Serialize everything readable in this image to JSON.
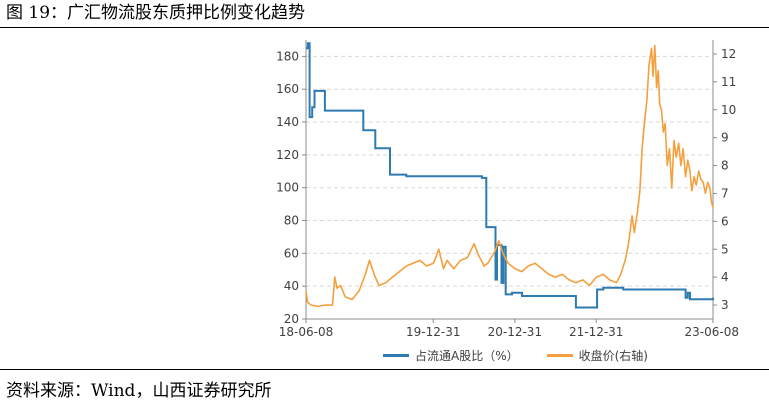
{
  "figure_title": "图 19：广汇物流股东质押比例变化趋势",
  "source_text": "资料来源：Wind，山西证券研究所",
  "chart_data": {
    "type": "line",
    "title": "广汇物流股东质押比例变化趋势",
    "x": [
      "18-06-08",
      "19-12-31",
      "20-12-31",
      "21-12-31",
      "23-06-08"
    ],
    "x_tick_labels": [
      "18-06-08",
      "19-12-31",
      "20-12-31",
      "21-12-31",
      "23-06-08"
    ],
    "x_range": [
      "18-06-08",
      "23-06-08"
    ],
    "left_axis": {
      "ylim": [
        20,
        190
      ],
      "ticks": [
        20,
        40,
        60,
        80,
        100,
        120,
        140,
        160,
        180
      ]
    },
    "right_axis": {
      "ylim": [
        2.5,
        12.5
      ],
      "ticks": [
        3,
        4,
        5,
        6,
        7,
        8,
        9,
        10,
        11,
        12
      ]
    },
    "grid": true,
    "legend_position": "bottom",
    "colors": {
      "pledge": "#2f7ab0",
      "price": "#f5a03c",
      "axis": "#8c8c8c",
      "grid": "#d9d9d9"
    },
    "series": [
      {
        "name": "占流通A股比（%）",
        "axis": "left",
        "kind": "step",
        "points": [
          [
            "2018-06-08",
            185
          ],
          [
            "2018-06-16",
            188
          ],
          [
            "2018-06-24",
            143
          ],
          [
            "2018-07-06",
            149
          ],
          [
            "2018-07-16",
            159
          ],
          [
            "2018-09-01",
            147
          ],
          [
            "2019-02-20",
            135
          ],
          [
            "2019-04-15",
            124
          ],
          [
            "2019-06-20",
            108
          ],
          [
            "2019-09-01",
            107
          ],
          [
            "2020-08-05",
            106
          ],
          [
            "2020-08-25",
            76
          ],
          [
            "2020-10-05",
            44
          ],
          [
            "2020-10-12",
            65
          ],
          [
            "2020-11-01",
            42
          ],
          [
            "2020-11-10",
            64
          ],
          [
            "2020-11-20",
            35
          ],
          [
            "2020-12-18",
            36
          ],
          [
            "2021-02-01",
            34
          ],
          [
            "2021-09-01",
            34
          ],
          [
            "2021-10-01",
            27
          ],
          [
            "2022-01-01",
            27
          ],
          [
            "2022-01-04",
            38
          ],
          [
            "2022-02-01",
            39
          ],
          [
            "2022-05-01",
            38
          ],
          [
            "2023-01-15",
            38
          ],
          [
            "2023-02-05",
            33
          ],
          [
            "2023-02-15",
            36
          ],
          [
            "2023-02-25",
            32
          ],
          [
            "2023-06-08",
            33
          ]
        ]
      },
      {
        "name": "收盘价(右轴)",
        "axis": "right",
        "kind": "line",
        "points": [
          [
            "2018-06-08",
            3.5
          ],
          [
            "2018-06-15",
            3.1
          ],
          [
            "2018-07-01",
            3.0
          ],
          [
            "2018-08-01",
            2.95
          ],
          [
            "2018-09-01",
            3.0
          ],
          [
            "2018-10-05",
            3.0
          ],
          [
            "2018-10-15",
            4.0
          ],
          [
            "2018-10-25",
            3.6
          ],
          [
            "2018-11-10",
            3.7
          ],
          [
            "2018-12-01",
            3.3
          ],
          [
            "2019-01-01",
            3.2
          ],
          [
            "2019-02-01",
            3.5
          ],
          [
            "2019-03-01",
            4.1
          ],
          [
            "2019-03-20",
            4.6
          ],
          [
            "2019-04-10",
            4.1
          ],
          [
            "2019-05-01",
            3.7
          ],
          [
            "2019-06-01",
            3.8
          ],
          [
            "2019-07-01",
            4.0
          ],
          [
            "2019-08-01",
            4.2
          ],
          [
            "2019-09-01",
            4.4
          ],
          [
            "2019-10-01",
            4.5
          ],
          [
            "2019-11-01",
            4.6
          ],
          [
            "2019-12-01",
            4.4
          ],
          [
            "2020-01-01",
            4.5
          ],
          [
            "2020-01-25",
            5.0
          ],
          [
            "2020-02-15",
            4.3
          ],
          [
            "2020-03-01",
            4.6
          ],
          [
            "2020-04-01",
            4.3
          ],
          [
            "2020-05-01",
            4.6
          ],
          [
            "2020-06-01",
            4.7
          ],
          [
            "2020-07-01",
            5.2
          ],
          [
            "2020-07-20",
            4.8
          ],
          [
            "2020-08-15",
            4.4
          ],
          [
            "2020-09-01",
            4.5
          ],
          [
            "2020-10-01",
            4.9
          ],
          [
            "2020-10-20",
            5.3
          ],
          [
            "2020-11-10",
            4.8
          ],
          [
            "2020-12-01",
            4.5
          ],
          [
            "2021-01-01",
            4.3
          ],
          [
            "2021-02-01",
            4.2
          ],
          [
            "2021-03-01",
            4.4
          ],
          [
            "2021-04-01",
            4.5
          ],
          [
            "2021-05-01",
            4.3
          ],
          [
            "2021-06-01",
            4.1
          ],
          [
            "2021-07-01",
            4.0
          ],
          [
            "2021-08-01",
            4.1
          ],
          [
            "2021-09-01",
            3.9
          ],
          [
            "2021-10-01",
            3.8
          ],
          [
            "2021-11-01",
            3.9
          ],
          [
            "2021-12-01",
            3.7
          ],
          [
            "2022-01-01",
            4.0
          ],
          [
            "2022-02-01",
            4.1
          ],
          [
            "2022-03-01",
            3.9
          ],
          [
            "2022-04-01",
            3.8
          ],
          [
            "2022-04-20",
            4.1
          ],
          [
            "2022-05-10",
            4.6
          ],
          [
            "2022-05-25",
            5.2
          ],
          [
            "2022-06-10",
            6.2
          ],
          [
            "2022-06-20",
            5.6
          ],
          [
            "2022-07-05",
            6.4
          ],
          [
            "2022-07-15",
            7.1
          ],
          [
            "2022-07-25",
            8.6
          ],
          [
            "2022-08-05",
            9.6
          ],
          [
            "2022-08-15",
            10.3
          ],
          [
            "2022-08-25",
            11.6
          ],
          [
            "2022-09-05",
            12.2
          ],
          [
            "2022-09-12",
            11.2
          ],
          [
            "2022-09-20",
            12.3
          ],
          [
            "2022-09-28",
            10.8
          ],
          [
            "2022-10-05",
            11.4
          ],
          [
            "2022-10-12",
            10.2
          ],
          [
            "2022-10-20",
            10.0
          ],
          [
            "2022-10-28",
            9.2
          ],
          [
            "2022-11-05",
            9.5
          ],
          [
            "2022-11-15",
            8.0
          ],
          [
            "2022-11-25",
            8.6
          ],
          [
            "2022-12-05",
            7.2
          ],
          [
            "2022-12-15",
            8.9
          ],
          [
            "2022-12-25",
            8.3
          ],
          [
            "2023-01-05",
            8.8
          ],
          [
            "2023-01-15",
            8.0
          ],
          [
            "2023-01-25",
            8.6
          ],
          [
            "2023-02-05",
            7.6
          ],
          [
            "2023-02-15",
            8.2
          ],
          [
            "2023-02-25",
            7.8
          ],
          [
            "2023-03-05",
            7.1
          ],
          [
            "2023-03-15",
            7.6
          ],
          [
            "2023-03-25",
            7.3
          ],
          [
            "2023-04-05",
            7.8
          ],
          [
            "2023-04-15",
            7.5
          ],
          [
            "2023-04-25",
            7.4
          ],
          [
            "2023-05-05",
            7.0
          ],
          [
            "2023-05-15",
            7.4
          ],
          [
            "2023-05-25",
            7.2
          ],
          [
            "2023-06-01",
            6.7
          ],
          [
            "2023-06-08",
            6.5
          ]
        ]
      }
    ]
  }
}
